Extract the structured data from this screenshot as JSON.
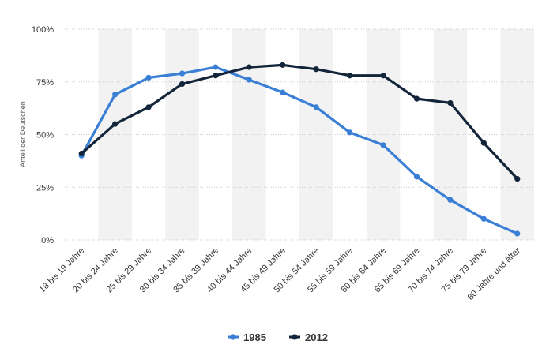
{
  "chart_data": {
    "type": "line",
    "ylabel": "Anteil der Deutschen",
    "xlabel": "",
    "ylim": [
      0,
      100
    ],
    "yticks": [
      "0%",
      "25%",
      "50%",
      "75%",
      "100%"
    ],
    "ytick_values": [
      0,
      25,
      50,
      75,
      100
    ],
    "grid": "horizontal dashed",
    "legend_position": "bottom-center",
    "categories": [
      "18 bis 19 Jahre",
      "20 bis 24 Jahre",
      "25 bis 29 Jahre",
      "30 bis 34 Jahre",
      "35 bis 39 Jahre",
      "40 bis 44 Jahre",
      "45 bis 49 Jahre",
      "50 bis 54 Jahre",
      "55 bis 59 Jahre",
      "60 bis 64 Jahre",
      "65 bis 69 Jahre",
      "70 bis 74 Jahre",
      "75 bis 79 Jahre",
      "80 Jahre und älter"
    ],
    "series": [
      {
        "name": "1985",
        "color": "#3a7fd5",
        "values": [
          40,
          69,
          77,
          79,
          82,
          76,
          70,
          63,
          51,
          45,
          30,
          19,
          10,
          3
        ]
      },
      {
        "name": "2012",
        "color": "#13253a",
        "values": [
          41,
          55,
          63,
          74,
          78,
          82,
          83,
          81,
          78,
          78,
          67,
          65,
          46,
          29
        ]
      }
    ]
  },
  "colors": {
    "band": "#f2f2f2",
    "grid": "#c8c8c8"
  }
}
